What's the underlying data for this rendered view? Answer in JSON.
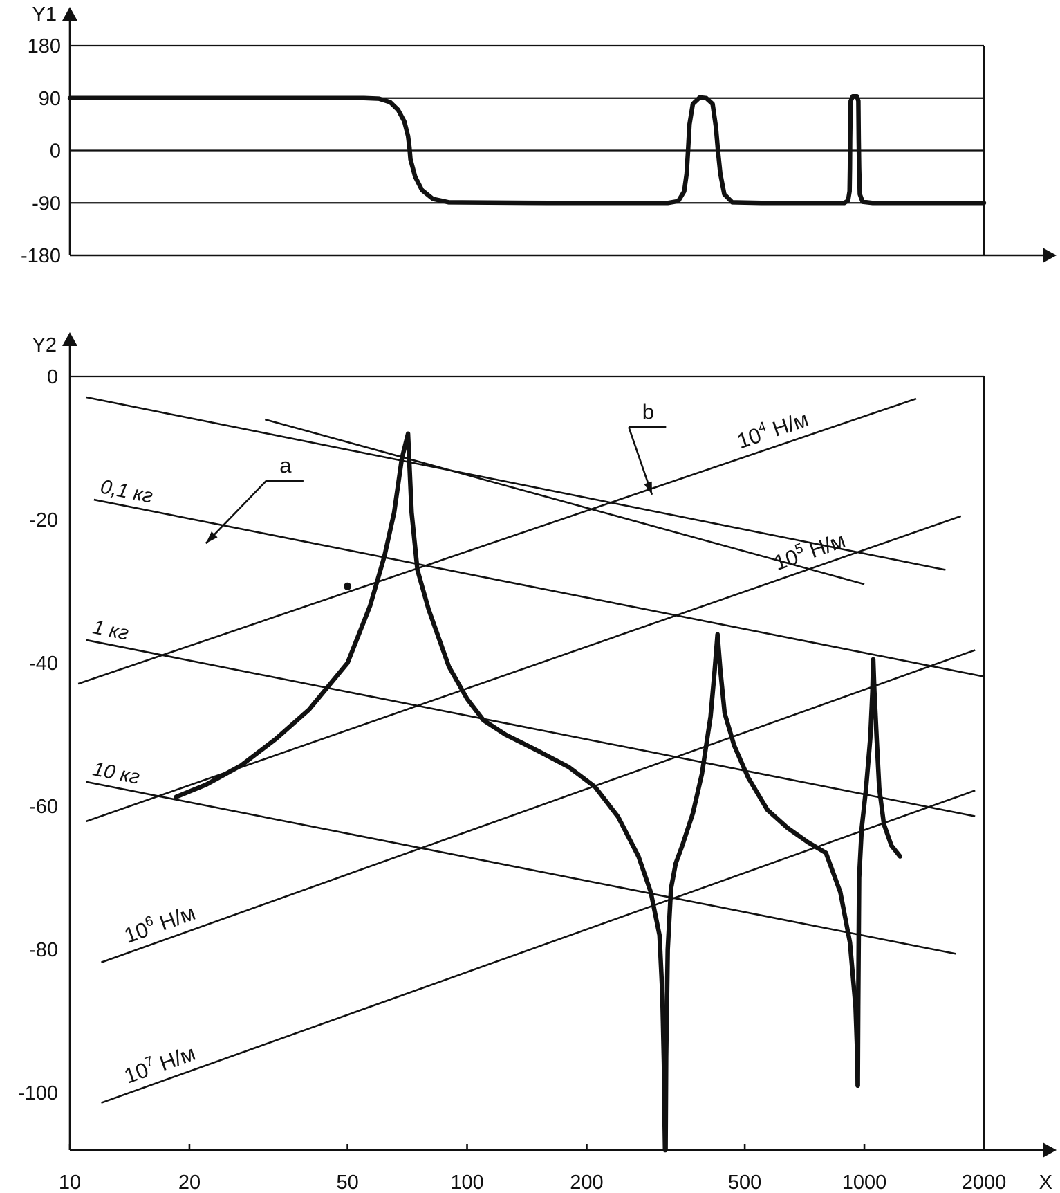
{
  "chart_data": [
    {
      "id": "phase",
      "type": "line",
      "ylabel": "Y1",
      "xlabel": "",
      "x_scale": "log",
      "xlim": [
        10,
        2000
      ],
      "ylim": [
        -180,
        180
      ],
      "y_ticks": [
        180,
        90,
        0,
        -90,
        -180
      ],
      "grid": "horizontal at 180, 90, 0, -90",
      "series": [
        {
          "style": "thick",
          "points": [
            [
              10,
              90
            ],
            [
              55,
              90
            ],
            [
              60,
              89
            ],
            [
              64,
              83
            ],
            [
              67,
              70
            ],
            [
              69.5,
              50
            ],
            [
              71,
              25
            ],
            [
              71.6,
              5
            ],
            [
              72,
              -15
            ],
            [
              74,
              -45
            ],
            [
              77,
              -68
            ],
            [
              82,
              -83
            ],
            [
              90,
              -89
            ],
            [
              160,
              -90
            ],
            [
              320,
              -90
            ],
            [
              340,
              -87
            ],
            [
              352,
              -70
            ],
            [
              357,
              -40
            ],
            [
              360,
              0
            ],
            [
              363,
              45
            ],
            [
              370,
              80
            ],
            [
              385,
              91
            ],
            [
              400,
              90
            ],
            [
              415,
              80
            ],
            [
              423,
              40
            ],
            [
              428,
              0
            ],
            [
              434,
              -40
            ],
            [
              444,
              -75
            ],
            [
              465,
              -89
            ],
            [
              550,
              -90
            ],
            [
              890,
              -90
            ],
            [
              910,
              -86
            ],
            [
              918,
              -70
            ],
            [
              920,
              -30
            ],
            [
              921,
              20
            ],
            [
              924,
              85
            ],
            [
              935,
              93
            ],
            [
              958,
              93
            ],
            [
              966,
              85
            ],
            [
              968,
              20
            ],
            [
              970,
              -30
            ],
            [
              974,
              -75
            ],
            [
              990,
              -88
            ],
            [
              1050,
              -90
            ],
            [
              2000,
              -90
            ]
          ]
        }
      ]
    },
    {
      "id": "magnitude",
      "type": "line",
      "ylabel": "Y2",
      "xlabel": "X",
      "x_scale": "log",
      "xlim": [
        10,
        2000
      ],
      "ylim": [
        -108,
        0
      ],
      "x_ticks": [
        10,
        20,
        50,
        100,
        200,
        500,
        1000,
        2000
      ],
      "y_ticks": [
        0,
        -20,
        -40,
        -60,
        -80,
        -100
      ],
      "reference_lines": [
        {
          "label": "0,1 кг",
          "italic": true,
          "x": [
            11.5,
            2000
          ],
          "y": [
            -17.2,
            -41.9
          ]
        },
        {
          "label": "",
          "x": [
            31,
            1000
          ],
          "y": [
            -6,
            -29
          ]
        },
        {
          "label": "1 кг",
          "italic": true,
          "x": [
            11,
            1900
          ],
          "y": [
            -36.8,
            -61.4
          ]
        },
        {
          "label": "10 кг",
          "italic": true,
          "x": [
            11,
            1700
          ],
          "y": [
            -56.6,
            -80.6
          ]
        },
        {
          "label": "",
          "x": [
            11,
            1600
          ],
          "y": [
            -2.9,
            -27
          ]
        },
        {
          "label": "10",
          "exp": "4",
          "unit": " Н/м",
          "x": [
            10.5,
            1350
          ],
          "y": [
            -42.9,
            -3.1
          ]
        },
        {
          "label": "10",
          "exp": "5",
          "unit": " Н/м",
          "x": [
            11,
            1750
          ],
          "y": [
            -62.1,
            -19.5
          ]
        },
        {
          "label": "10",
          "exp": "6",
          "unit": " Н/м",
          "x": [
            12,
            1900
          ],
          "y": [
            -81.8,
            -38.2
          ]
        },
        {
          "label": "10",
          "exp": "7",
          "unit": " Н/м",
          "x": [
            12,
            1900
          ],
          "y": [
            -101.4,
            -57.8
          ]
        }
      ],
      "series": [
        {
          "style": "thick",
          "points": [
            [
              18.5,
              -58.7
            ],
            [
              22,
              -57
            ],
            [
              27,
              -54.3
            ],
            [
              33,
              -50.6
            ],
            [
              40,
              -46.5
            ],
            [
              50,
              -40
            ],
            [
              57,
              -32
            ],
            [
              62,
              -25
            ],
            [
              65.5,
              -19
            ],
            [
              68.5,
              -11.5
            ],
            [
              71,
              -8
            ],
            [
              72.5,
              -19
            ],
            [
              75,
              -27
            ],
            [
              80,
              -32.5
            ],
            [
              90,
              -40.5
            ],
            [
              100,
              -45
            ],
            [
              110,
              -48
            ],
            [
              125,
              -50
            ],
            [
              150,
              -52.2
            ],
            [
              180,
              -54.5
            ],
            [
              210,
              -57.3
            ],
            [
              240,
              -61.5
            ],
            [
              270,
              -67
            ],
            [
              290,
              -72
            ],
            [
              305,
              -78
            ],
            [
              310,
              -86
            ],
            [
              313,
              -96
            ],
            [
              314,
              -103
            ],
            [
              315,
              -108
            ]
          ]
        },
        {
          "style": "thick",
          "points": [
            [
              316,
              -108
            ],
            [
              317,
              -95
            ],
            [
              320,
              -80
            ],
            [
              326,
              -71.5
            ],
            [
              335,
              -68
            ],
            [
              348,
              -65.5
            ],
            [
              370,
              -61
            ],
            [
              390,
              -55.5
            ],
            [
              410,
              -47.5
            ],
            [
              420,
              -41
            ],
            [
              427,
              -36
            ],
            [
              434,
              -41
            ],
            [
              445,
              -47
            ],
            [
              470,
              -51.5
            ],
            [
              510,
              -56
            ],
            [
              570,
              -60.5
            ],
            [
              640,
              -63
            ],
            [
              720,
              -65
            ],
            [
              800,
              -66.5
            ],
            [
              870,
              -72
            ],
            [
              920,
              -79
            ],
            [
              950,
              -88
            ],
            [
              960,
              -95
            ],
            [
              962,
              -99
            ]
          ]
        },
        {
          "style": "thick",
          "points": [
            [
              963,
              -99
            ],
            [
              965,
              -88
            ],
            [
              970,
              -70
            ],
            [
              985,
              -63
            ],
            [
              1010,
              -57.5
            ],
            [
              1035,
              -50.5
            ],
            [
              1048,
              -44
            ],
            [
              1053,
              -39.5
            ],
            [
              1060,
              -44
            ],
            [
              1075,
              -51
            ],
            [
              1090,
              -57.5
            ],
            [
              1120,
              -62.5
            ],
            [
              1170,
              -65.5
            ],
            [
              1230,
              -67
            ]
          ]
        }
      ],
      "annotations": [
        {
          "text": "a",
          "x": 33,
          "y": -14.2,
          "target_x": 22,
          "target_y": -23.3
        },
        {
          "text": "b",
          "x": 270,
          "y": -6.7,
          "target_x": 292,
          "target_y": -16.5
        }
      ],
      "markers": [
        {
          "x": 50,
          "y": -29.3
        }
      ]
    }
  ]
}
